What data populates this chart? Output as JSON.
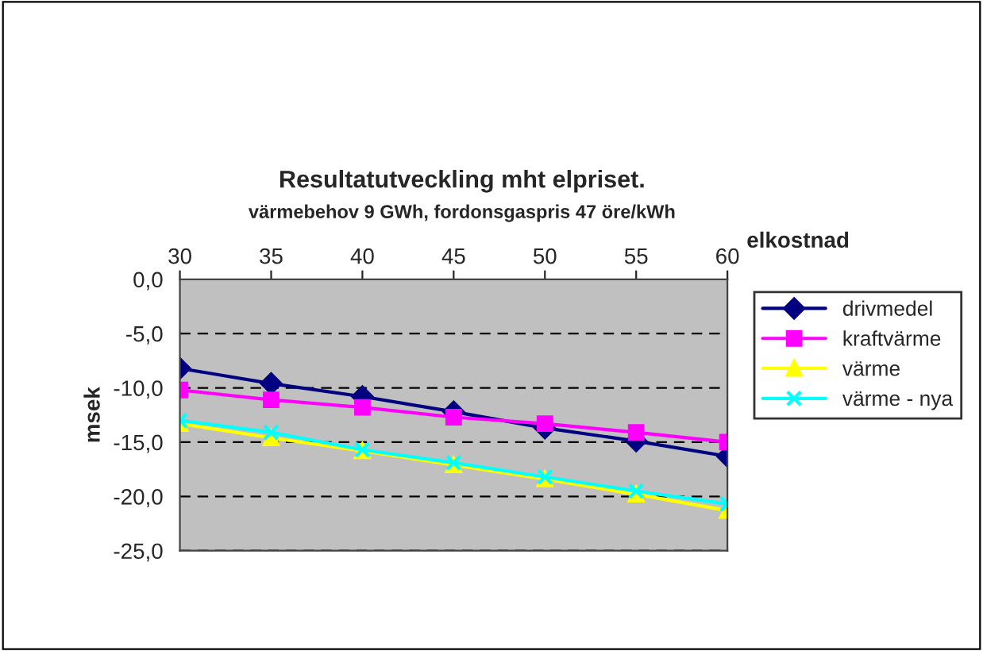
{
  "chart_data": {
    "type": "line",
    "title": "Resultatutveckling mht elpriset.",
    "subtitle": "värmebehov 9 GWh, fordonsgaspris 47 öre/kWh",
    "xlabel": "elkostnad",
    "ylabel": "msek",
    "x": [
      30,
      35,
      40,
      45,
      50,
      55,
      60
    ],
    "series": [
      {
        "name": "drivmedel",
        "color": "#000080",
        "marker": "diamond",
        "values": [
          -8.2,
          -9.6,
          -10.8,
          -12.2,
          -13.7,
          -14.9,
          -16.3
        ]
      },
      {
        "name": "kraftvärme",
        "color": "#ff00ff",
        "marker": "square",
        "values": [
          -10.2,
          -11.1,
          -11.8,
          -12.7,
          -13.3,
          -14.1,
          -15.0
        ]
      },
      {
        "name": "värme",
        "color": "#ffff00",
        "marker": "triangle",
        "values": [
          -13.3,
          -14.6,
          -15.8,
          -17.1,
          -18.4,
          -19.8,
          -21.3
        ]
      },
      {
        "name": "värme - nya",
        "color": "#00ffff",
        "marker": "cross",
        "values": [
          -13.0,
          -14.1,
          -15.7,
          -16.9,
          -18.2,
          -19.5,
          -20.7
        ]
      }
    ],
    "xlim": [
      30,
      60
    ],
    "xticks": [
      30,
      35,
      40,
      45,
      50,
      55,
      60
    ],
    "ylim": [
      -25,
      0
    ],
    "yticks": [
      {
        "value": -25,
        "label": "-25,0"
      },
      {
        "value": -20,
        "label": "-20,0"
      },
      {
        "value": -15,
        "label": "-15,0"
      },
      {
        "value": -10,
        "label": "-10,0"
      },
      {
        "value": -5,
        "label": "-5,0"
      },
      {
        "value": 0,
        "label": "0,0"
      }
    ],
    "grid": "y",
    "legend": "right",
    "line_style": "solid"
  }
}
